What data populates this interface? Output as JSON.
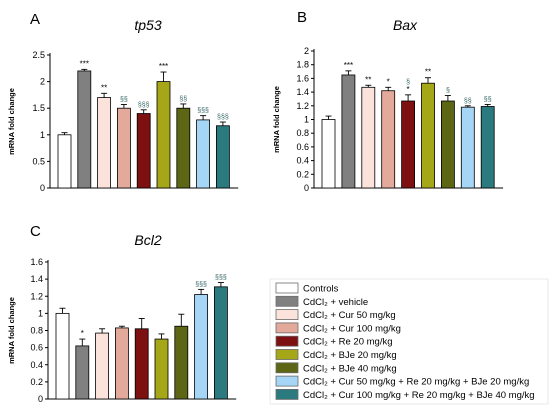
{
  "chart_data": [
    {
      "type": "bar",
      "panel": "A",
      "title": "tp53",
      "ylabel": "mRNA fold change",
      "ylim": [
        0,
        2.5
      ],
      "yticks": [
        "0",
        "0.5",
        "1",
        "1.5",
        "2",
        "2.5"
      ],
      "categories": [
        "Controls",
        "CdCl₂ + vehicle",
        "CdCl₂ + Cur 50 mg/kg",
        "CdCl₂ + Cur 100 mg/kg",
        "CdCl₂ + Re 20 mg/kg",
        "CdCl₂ + BJe 20 mg/kg",
        "CdCl₂ + BJe 40 mg/kg",
        "CdCl₂ + Cur 50 mg/kg + Re 20 mg/kg + BJe 20 mg/kg",
        "CdCl₂ + Cur 100 mg/kg + Re 20 mg/kg + BJe 40 mg/kg"
      ],
      "values": [
        1.0,
        2.2,
        1.7,
        1.5,
        1.4,
        2.0,
        1.5,
        1.28,
        1.17
      ],
      "errors": [
        0.04,
        0.03,
        0.08,
        0.07,
        0.07,
        0.18,
        0.08,
        0.08,
        0.07
      ],
      "significance": [
        "",
        "***",
        "**",
        "§§",
        "§§§",
        "***",
        "§§",
        "§§§",
        "§§§"
      ]
    },
    {
      "type": "bar",
      "panel": "B",
      "title": "Bax",
      "ylabel": "mRNA fold change",
      "ylim": [
        0,
        2
      ],
      "yticks": [
        "0",
        "0.2",
        "0.4",
        "0.6",
        "0.8",
        "1",
        "1.2",
        "1.4",
        "1.6",
        "1.8",
        "2"
      ],
      "categories": [
        "Controls",
        "CdCl₂ + vehicle",
        "CdCl₂ + Cur 50 mg/kg",
        "CdCl₂ + Cur 100 mg/kg",
        "CdCl₂ + Re 20 mg/kg",
        "CdCl₂ + BJe 20 mg/kg",
        "CdCl₂ + BJe 40 mg/kg",
        "CdCl₂ + Cur 50 mg/kg + Re 20 mg/kg + BJe 20 mg/kg",
        "CdCl₂ + Cur 100 mg/kg + Re 20 mg/kg + BJe 40 mg/kg"
      ],
      "values": [
        1.0,
        1.65,
        1.47,
        1.42,
        1.27,
        1.53,
        1.27,
        1.18,
        1.19
      ],
      "errors": [
        0.05,
        0.06,
        0.03,
        0.05,
        0.09,
        0.08,
        0.08,
        0.02,
        0.03
      ],
      "significance": [
        "",
        "***",
        "**",
        "*",
        "§\n*",
        "**",
        "§",
        "§§",
        "§§"
      ]
    },
    {
      "type": "bar",
      "panel": "C",
      "title": "Bcl2",
      "ylabel": "mRNA fold change",
      "ylim": [
        0,
        1.6
      ],
      "yticks": [
        "0",
        "0.2",
        "0.4",
        "0.6",
        "0.8",
        "1",
        "1.2",
        "1.4",
        "1.6"
      ],
      "categories": [
        "Controls",
        "CdCl₂ + vehicle",
        "CdCl₂ + Cur 50 mg/kg",
        "CdCl₂ + Cur 100 mg/kg",
        "CdCl₂ + Re 20 mg/kg",
        "CdCl₂ + BJe 20 mg/kg",
        "CdCl₂ + BJe 40 mg/kg",
        "CdCl₂ + Cur 50 mg/kg + Re 20 mg/kg + BJe 20 mg/kg",
        "CdCl₂ + Cur 100 mg/kg + Re 20 mg/kg + BJe 40 mg/kg"
      ],
      "values": [
        1.0,
        0.62,
        0.77,
        0.83,
        0.82,
        0.7,
        0.85,
        1.22,
        1.31
      ],
      "errors": [
        0.06,
        0.08,
        0.05,
        0.02,
        0.12,
        0.06,
        0.14,
        0.06,
        0.05
      ],
      "significance": [
        "",
        "*",
        "",
        "",
        "",
        "",
        "",
        "§§§",
        "§§§"
      ]
    }
  ],
  "colors": [
    "#ffffff",
    "#808080",
    "#fbe3dc",
    "#e3a99a",
    "#7d1010",
    "#a6a619",
    "#5c6614",
    "#a6d6f5",
    "#2a7a7f"
  ],
  "legend": {
    "entries": [
      "Controls",
      "CdCl₂ + vehicle",
      "CdCl₂ + Cur 50 mg/kg",
      "CdCl₂ + Cur 100 mg/kg",
      "CdCl₂ + Re 20 mg/kg",
      "CdCl₂ + BJe 20 mg/kg",
      "CdCl₂ + BJe 40 mg/kg",
      "CdCl₂ + Cur 50 mg/kg + Re 20 mg/kg + BJe 20 mg/kg",
      "CdCl₂ + Cur 100 mg/kg + Re 20 mg/kg + BJe 40 mg/kg"
    ]
  }
}
